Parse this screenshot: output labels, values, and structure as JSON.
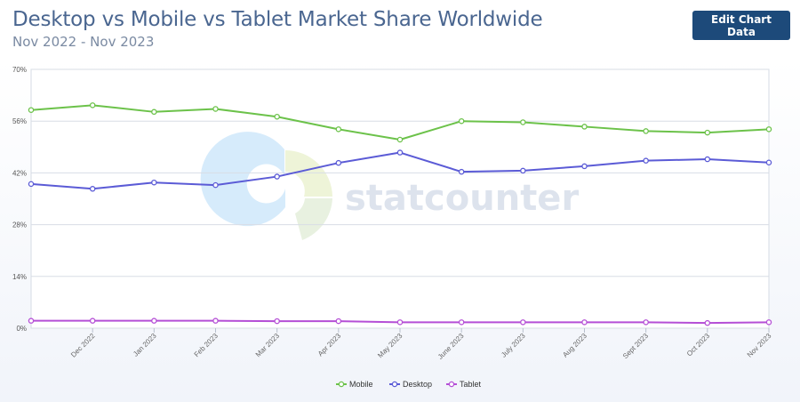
{
  "header": {
    "title": "Desktop vs Mobile vs Tablet Market Share Worldwide",
    "subtitle": "Nov 2022 - Nov 2023",
    "edit_button_label": "Edit Chart Data"
  },
  "watermark": {
    "text": "statcounter"
  },
  "chart_data": {
    "type": "line",
    "title": "Desktop vs Mobile vs Tablet Market Share Worldwide",
    "subtitle": "Nov 2022 - Nov 2023",
    "x": [
      "Nov 2022",
      "Dec 2022",
      "Jan 2023",
      "Feb 2023",
      "Mar 2023",
      "Apr 2023",
      "May 2023",
      "June 2023",
      "July 2023",
      "Aug 2023",
      "Sept 2023",
      "Oct 2023",
      "Nov 2023"
    ],
    "x_tick_labels": [
      "Dec 2022",
      "Jan 2023",
      "Feb 2023",
      "Mar 2023",
      "Apr 2023",
      "May 2023",
      "June 2023",
      "July 2023",
      "Aug 2023",
      "Sept 2023",
      "Oct 2023",
      "Nov 2023"
    ],
    "y_ticks": [
      "0%",
      "14%",
      "28%",
      "42%",
      "56%",
      "70%"
    ],
    "ylim": [
      0,
      70
    ],
    "grid": true,
    "legend_position": "bottom",
    "series": [
      {
        "name": "Mobile",
        "color": "#6cc24a",
        "values": [
          59.0,
          60.3,
          58.5,
          59.3,
          57.2,
          53.8,
          51.0,
          56.0,
          55.7,
          54.5,
          53.3,
          52.9,
          53.8
        ]
      },
      {
        "name": "Desktop",
        "color": "#5b5bd6",
        "values": [
          39.0,
          37.7,
          39.4,
          38.7,
          41.0,
          44.7,
          47.5,
          42.3,
          42.6,
          43.8,
          45.3,
          45.7,
          44.8
        ]
      },
      {
        "name": "Tablet",
        "color": "#b54fd6",
        "values": [
          2.0,
          2.0,
          2.0,
          2.0,
          1.9,
          1.9,
          1.6,
          1.6,
          1.6,
          1.6,
          1.6,
          1.4,
          1.6
        ]
      }
    ]
  }
}
